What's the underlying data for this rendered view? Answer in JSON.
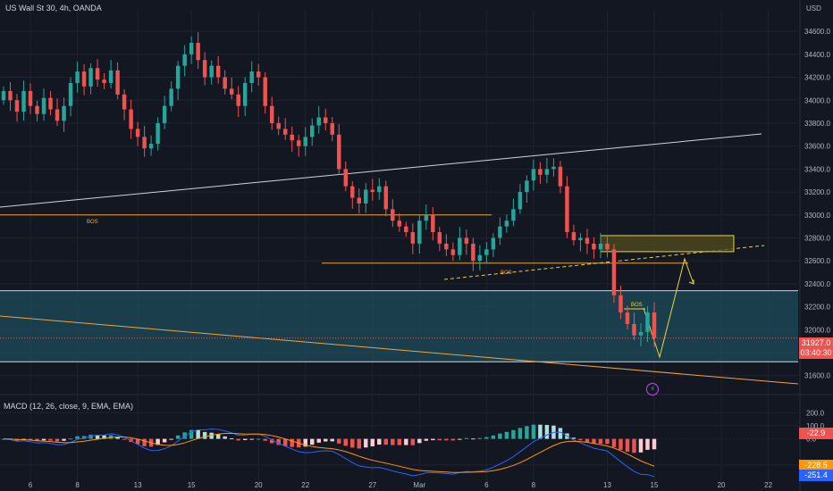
{
  "header": {
    "symbol_title": "US Wall St 30, 4h, OANDA"
  },
  "axis": {
    "currency": "USD"
  },
  "indicator": {
    "macd_title": "MACD (12, 26, close, 9, EMA, EMA)"
  },
  "price_tags": {
    "last_price": "31927.0",
    "countdown": "03:40:30",
    "macd_hist": "-22.9",
    "macd_signal": "-228.5",
    "macd_line": "-251.4"
  },
  "annotations": {
    "bos_upper": "BOS",
    "bos_lower": "BOS",
    "bos_small": "BOS"
  },
  "colors": {
    "bg": "#131722",
    "up": "#26a69a",
    "down": "#ef5350",
    "grid": "#1f2330",
    "zone_fill": "#1d4c5a",
    "orange": "#f0a53a",
    "yellow": "#e8d43a",
    "macd_line": "#2962ff",
    "signal_line": "#ff9800"
  },
  "chart_data": {
    "type": "candlestick",
    "title": "US Wall St 30, 4h, OANDA",
    "y_price_ticks": [
      31600,
      31800,
      32000,
      32200,
      32400,
      32600,
      32800,
      33000,
      33200,
      33400,
      33600,
      33800,
      34000,
      34200,
      34400,
      34600
    ],
    "y_price_ticks_label": [
      "31600.0",
      "31800.0",
      "32000.0",
      "32200.0",
      "32400.0",
      "32600.0",
      "32800.0",
      "33000.0",
      "33200.0",
      "33400.0",
      "33600.0",
      "33800.0",
      "34000.0",
      "34200.0",
      "34400.0",
      "34600.0"
    ],
    "ylim": [
      31450,
      34780
    ],
    "macd_ticks": [
      200,
      100,
      0,
      -200
    ],
    "macd_ticks_label": [
      "200.0",
      "100.0",
      "0.0",
      "-200.0"
    ],
    "macd_ylim": [
      -330,
      270
    ],
    "x_labels": [
      {
        "label": "6",
        "i": 4
      },
      {
        "label": "8",
        "i": 11
      },
      {
        "label": "13",
        "i": 20
      },
      {
        "label": "15",
        "i": 28
      },
      {
        "label": "20",
        "i": 38
      },
      {
        "label": "22",
        "i": 45
      },
      {
        "label": "27",
        "i": 55
      },
      {
        "label": "Mar",
        "i": 62
      },
      {
        "label": "6",
        "i": 72
      },
      {
        "label": "8",
        "i": 79
      },
      {
        "label": "13",
        "i": 90
      },
      {
        "label": "15",
        "i": 97
      },
      {
        "label": "20",
        "i": 107
      },
      {
        "label": "22",
        "i": 114
      }
    ],
    "ohlc_close": [
      34080,
      34000,
      33900,
      34080,
      33950,
      33880,
      34020,
      33920,
      33820,
      33950,
      34150,
      34250,
      34120,
      34280,
      34180,
      34150,
      34260,
      34050,
      33920,
      33750,
      33680,
      33580,
      33620,
      33800,
      33950,
      34100,
      34300,
      34400,
      34500,
      34350,
      34200,
      34300,
      34200,
      34100,
      34050,
      33950,
      34150,
      34250,
      34200,
      33950,
      33800,
      33750,
      33700,
      33650,
      33600,
      33680,
      33780,
      33850,
      33800,
      33700,
      33400,
      33250,
      33150,
      33100,
      33220,
      33200,
      33250,
      33050,
      32950,
      32900,
      32850,
      32750,
      32950,
      33000,
      32850,
      32750,
      32700,
      32650,
      32800,
      32750,
      32600,
      32650,
      32700,
      32800,
      32900,
      32950,
      33050,
      33200,
      33300,
      33400,
      33350,
      33400,
      33420,
      33250,
      32850,
      32780,
      32800,
      32750,
      32700,
      32750,
      32700,
      32300,
      32150,
      32050,
      31950,
      31980,
      32150,
      31927
    ],
    "ohlc_open": [
      34000,
      34080,
      34000,
      33900,
      34080,
      33950,
      33880,
      34020,
      33920,
      33820,
      33950,
      34150,
      34250,
      34120,
      34280,
      34180,
      34150,
      34260,
      34050,
      33920,
      33750,
      33680,
      33580,
      33620,
      33800,
      33950,
      34100,
      34300,
      34400,
      34500,
      34350,
      34200,
      34300,
      34200,
      34100,
      34050,
      33950,
      34150,
      34250,
      34200,
      33950,
      33800,
      33750,
      33700,
      33650,
      33600,
      33680,
      33780,
      33850,
      33800,
      33700,
      33400,
      33250,
      33150,
      33100,
      33220,
      33200,
      33250,
      33050,
      32950,
      32900,
      32850,
      32750,
      32950,
      33000,
      32850,
      32750,
      32700,
      32650,
      32800,
      32750,
      32600,
      32650,
      32700,
      32800,
      32900,
      32950,
      33050,
      33200,
      33300,
      33400,
      33350,
      33400,
      33420,
      33250,
      32850,
      32780,
      32800,
      32750,
      32700,
      32750,
      32700,
      32300,
      32150,
      32050,
      31950,
      31980,
      32150
    ],
    "levels": {
      "resistance_zone": [
        31720,
        32340
      ],
      "bos_upper": 33000,
      "bos_lower": 32580,
      "supply_box": [
        32680,
        32820
      ]
    }
  }
}
